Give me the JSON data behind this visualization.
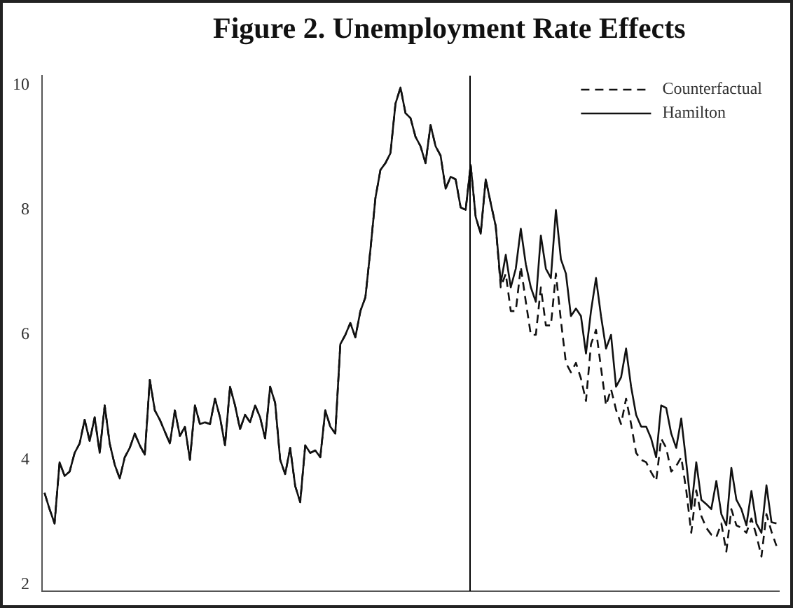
{
  "chart_data": {
    "type": "line",
    "title": "Figure 2.  Unemployment Rate Effects",
    "ylim": [
      1.9,
      10.15
    ],
    "yticks": [
      2,
      4,
      6,
      8,
      10
    ],
    "tick_labels": "y",
    "grid": false,
    "legend": "top right",
    "marker": "none",
    "categories": [
      null,
      null,
      null,
      null,
      null,
      null,
      null,
      null,
      null,
      null,
      null,
      null,
      null,
      null,
      null,
      null,
      null,
      null,
      null,
      null,
      null,
      null,
      null,
      null,
      null,
      null,
      null,
      null,
      null,
      null,
      null,
      null,
      null,
      null,
      null,
      null,
      null,
      null,
      null,
      null,
      null,
      null,
      null,
      null,
      null,
      null,
      null,
      null,
      null,
      null,
      null,
      null,
      null,
      null,
      null,
      null,
      null,
      null,
      null,
      null,
      null,
      null,
      null,
      null,
      null,
      null,
      null,
      null,
      null,
      null,
      null,
      null,
      null,
      null,
      null,
      null,
      null,
      null,
      null,
      null,
      null,
      null,
      null,
      null,
      null,
      null,
      null,
      null,
      null,
      null,
      null,
      null,
      null,
      null,
      null,
      null,
      null,
      null,
      null,
      null,
      null,
      null,
      null,
      null,
      null,
      null,
      null,
      null,
      null,
      null,
      null,
      null,
      null,
      null,
      null,
      null,
      null,
      null,
      null,
      null,
      null,
      null,
      null,
      null,
      null,
      null,
      null,
      null,
      null,
      null,
      null,
      null,
      null,
      null,
      null,
      null,
      null,
      null,
      null,
      null,
      null,
      null,
      null,
      null,
      null,
      null,
      null
    ],
    "series": [
      {
        "name": "Counterfactual",
        "color": "#111111",
        "line_style": "dashed",
        "values": [
          3.47,
          3.21,
          2.98,
          3.96,
          3.74,
          3.81,
          4.11,
          4.26,
          4.64,
          4.3,
          4.68,
          4.11,
          4.87,
          4.26,
          3.92,
          3.7,
          4.04,
          4.19,
          4.42,
          4.23,
          4.08,
          5.28,
          4.79,
          4.64,
          4.45,
          4.26,
          4.79,
          4.38,
          4.53,
          4.0,
          4.87,
          4.57,
          4.6,
          4.57,
          4.98,
          4.68,
          4.23,
          5.17,
          4.87,
          4.49,
          4.72,
          4.6,
          4.87,
          4.68,
          4.34,
          5.17,
          4.91,
          4.0,
          3.77,
          4.19,
          3.58,
          3.32,
          4.23,
          4.11,
          4.15,
          4.04,
          4.79,
          4.53,
          4.42,
          5.85,
          6.0,
          6.19,
          5.96,
          6.38,
          6.6,
          7.36,
          8.19,
          8.64,
          8.75,
          8.91,
          9.7,
          9.96,
          9.55,
          9.47,
          9.17,
          9.02,
          8.75,
          9.36,
          9.02,
          8.87,
          8.34,
          8.53,
          8.49,
          8.04,
          8.0,
          8.72,
          7.89,
          7.62,
          8.49,
          8.11,
          7.74,
          6.76,
          6.98,
          6.38,
          6.38,
          7.09,
          6.53,
          6.0,
          6.0,
          6.76,
          6.15,
          6.15,
          6.98,
          6.23,
          5.55,
          5.4,
          5.55,
          5.3,
          4.94,
          5.85,
          6.08,
          5.47,
          4.87,
          5.13,
          4.8,
          4.57,
          4.98,
          4.57,
          4.11,
          4.0,
          3.96,
          3.8,
          3.66,
          4.34,
          4.19,
          3.81,
          3.9,
          4.04,
          3.51,
          2.83,
          3.51,
          3.1,
          2.91,
          2.8,
          2.76,
          2.98,
          2.53,
          3.21,
          2.95,
          2.91,
          2.83,
          3.06,
          2.79,
          2.45,
          3.13,
          2.85,
          2.62
        ]
      },
      {
        "name": "Hamilton",
        "color": "#111111",
        "line_style": "solid",
        "values": [
          3.47,
          3.21,
          2.98,
          3.96,
          3.74,
          3.81,
          4.11,
          4.26,
          4.64,
          4.3,
          4.68,
          4.11,
          4.87,
          4.26,
          3.92,
          3.7,
          4.04,
          4.19,
          4.42,
          4.23,
          4.08,
          5.28,
          4.79,
          4.64,
          4.45,
          4.26,
          4.79,
          4.38,
          4.53,
          4.0,
          4.87,
          4.57,
          4.6,
          4.57,
          4.98,
          4.68,
          4.23,
          5.17,
          4.87,
          4.49,
          4.72,
          4.6,
          4.87,
          4.68,
          4.34,
          5.17,
          4.91,
          4.0,
          3.77,
          4.19,
          3.58,
          3.32,
          4.23,
          4.11,
          4.15,
          4.04,
          4.79,
          4.53,
          4.42,
          5.85,
          6.0,
          6.19,
          5.96,
          6.38,
          6.6,
          7.36,
          8.19,
          8.64,
          8.75,
          8.91,
          9.7,
          9.96,
          9.55,
          9.47,
          9.17,
          9.02,
          8.75,
          9.36,
          9.02,
          8.87,
          8.34,
          8.53,
          8.49,
          8.04,
          8.0,
          8.72,
          7.89,
          7.62,
          8.49,
          8.11,
          7.74,
          6.83,
          7.28,
          6.76,
          7.06,
          7.7,
          7.13,
          6.76,
          6.53,
          7.59,
          7.06,
          6.91,
          8.0,
          7.21,
          6.98,
          6.3,
          6.42,
          6.3,
          5.7,
          6.38,
          6.91,
          6.3,
          5.78,
          6.0,
          5.17,
          5.32,
          5.78,
          5.17,
          4.72,
          4.53,
          4.53,
          4.34,
          4.04,
          4.87,
          4.83,
          4.42,
          4.19,
          4.66,
          3.96,
          3.21,
          3.96,
          3.36,
          3.29,
          3.21,
          3.66,
          3.13,
          2.95,
          3.87,
          3.36,
          3.21,
          2.95,
          3.5,
          2.98,
          2.83,
          3.59,
          3.0,
          2.98
        ]
      }
    ]
  }
}
